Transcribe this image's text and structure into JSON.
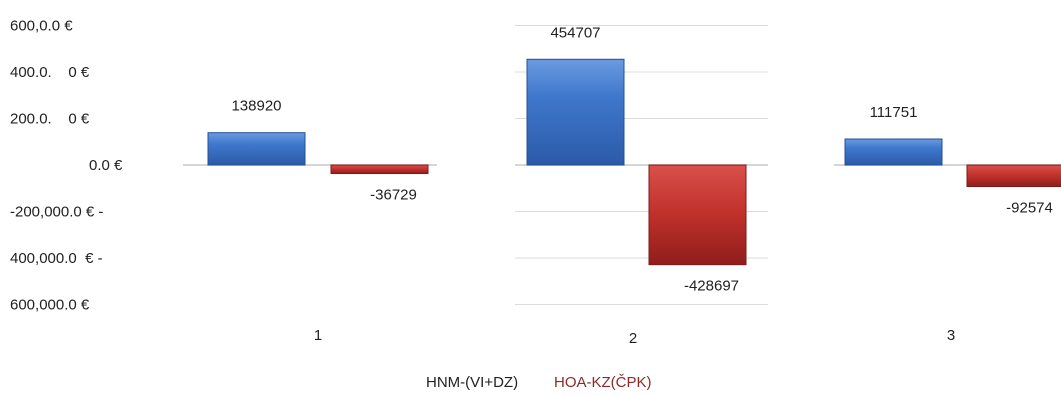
{
  "chart_data": {
    "type": "bar",
    "categories": [
      "1",
      "2",
      "3"
    ],
    "series": [
      {
        "name": "HNM-(VI+DZ)",
        "color": "#3a70c3",
        "values": [
          138920,
          454707,
          111751
        ]
      },
      {
        "name": "HOA-KZ(ČPK)",
        "color": "#c0302b",
        "values": [
          -36729,
          -428697,
          -92574
        ]
      }
    ],
    "ylim": [
      -600000,
      600000
    ],
    "yticks": [
      600000,
      400000,
      200000,
      0,
      -200000,
      -400000,
      -600000
    ],
    "ytick_labels": [
      "600,0.0 €",
      "400.0.    0 €",
      "200.0.    0 €",
      "0.0 €",
      "-200,000.0 € -",
      "400,000.0  € -",
      "600,000.0 €"
    ],
    "data_labels": [
      [
        "138920",
        "454707",
        "111751"
      ],
      [
        "-36729",
        "-428697",
        "-92574"
      ]
    ],
    "grid": true,
    "legend_position": "bottom",
    "title": "",
    "xlabel": "",
    "ylabel": ""
  }
}
